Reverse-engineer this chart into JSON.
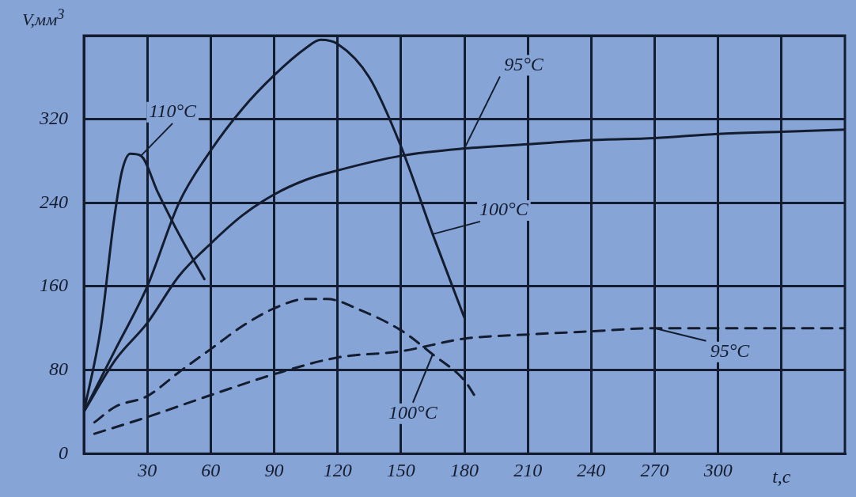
{
  "chart_data": {
    "type": "line",
    "xlabel": "t,c",
    "ylabel": "V,мм$^{3}$",
    "xlim": [
      0,
      360
    ],
    "xticks": [
      30,
      60,
      90,
      120,
      150,
      180,
      210,
      240,
      270,
      300,
      {
        "value": 330,
        "label": null
      }
    ],
    "ylim": [
      0,
      400
    ],
    "yticks": [
      0,
      80,
      160,
      240,
      320,
      {
        "value": 400,
        "label": null
      }
    ],
    "grid": true,
    "legend": false,
    "marker": "none",
    "series": [
      {
        "color": "#141c30",
        "line_style": "solid",
        "x": [
          0,
          8,
          14,
          18,
          22,
          27,
          35,
          45,
          57
        ],
        "values": [
          40,
          120,
          220,
          270,
          287,
          285,
          250,
          210,
          167
        ]
      },
      {
        "color": "#141c30",
        "line_style": "solid",
        "x": [
          0,
          15,
          30,
          45,
          60,
          75,
          90,
          105,
          112,
          120,
          135,
          150,
          165,
          180
        ],
        "values": [
          40,
          100,
          160,
          240,
          290,
          330,
          362,
          388,
          396,
          392,
          360,
          294,
          210,
          130
        ]
      },
      {
        "color": "#141c30",
        "line_style": "solid",
        "x": [
          0,
          15,
          30,
          45,
          60,
          75,
          90,
          105,
          120,
          150,
          180,
          210,
          240,
          270,
          300,
          330,
          360
        ],
        "values": [
          40,
          90,
          125,
          170,
          201,
          228,
          248,
          262,
          271,
          285,
          292,
          296,
          300,
          302,
          306,
          308,
          310
        ]
      },
      {
        "color": "#141c30",
        "line_style": "dashed",
        "x": [
          5,
          15,
          30,
          45,
          60,
          75,
          90,
          105,
          115,
          130,
          150,
          165,
          180,
          185
        ],
        "values": [
          30,
          45,
          55,
          78,
          100,
          122,
          139,
          148,
          148,
          138,
          118,
          95,
          70,
          55
        ]
      },
      {
        "color": "#141c30",
        "line_style": "dashed",
        "x": [
          5,
          30,
          60,
          90,
          120,
          150,
          180,
          210,
          240,
          270,
          300,
          330,
          360
        ],
        "values": [
          19,
          35,
          56,
          76,
          92,
          98,
          110,
          114,
          117,
          120,
          120,
          120,
          120
        ]
      }
    ],
    "annotations": [
      {
        "text": "110°C",
        "x": 27,
        "y": 285
      },
      {
        "text": "95°C",
        "x": 180,
        "y": 292
      },
      {
        "text": "100°C",
        "x": 165,
        "y": 210
      },
      {
        "text": "100°C",
        "x": 165,
        "y": 95
      },
      {
        "text": "95°C",
        "x": 270,
        "y": 120
      }
    ]
  }
}
